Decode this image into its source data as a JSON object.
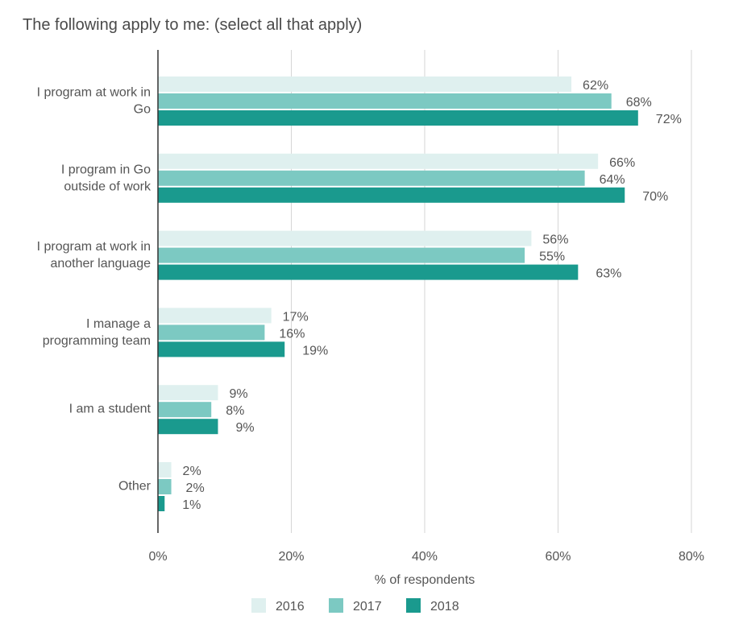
{
  "chart_data": {
    "type": "bar",
    "orientation": "horizontal",
    "title": "The following apply to me: (select all that apply)",
    "xlabel": "% of respondents",
    "ylabel": "",
    "categories": [
      [
        "I program at work in",
        "Go"
      ],
      [
        "I program in Go",
        "outside of work"
      ],
      [
        "I program at work in",
        "another language"
      ],
      [
        "I manage a",
        "programming team"
      ],
      [
        "I am a student"
      ],
      [
        "Other"
      ]
    ],
    "series": [
      {
        "name": "2016",
        "color": "#dff0ef",
        "values": [
          62,
          66,
          56,
          17,
          9,
          2
        ]
      },
      {
        "name": "2017",
        "color": "#7cc9c2",
        "values": [
          68,
          64,
          55,
          16,
          8,
          2
        ]
      },
      {
        "name": "2018",
        "color": "#1a9a8e",
        "values": [
          72,
          70,
          63,
          19,
          9,
          1
        ]
      }
    ],
    "xlim": [
      0,
      80
    ],
    "ticks": [
      0,
      20,
      40,
      60,
      80
    ],
    "tick_format": "percent",
    "grid": true,
    "legend": "bottom"
  }
}
